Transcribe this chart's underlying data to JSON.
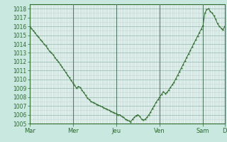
{
  "title": "",
  "bg_color": "#c8e8e0",
  "plot_bg_color": "#e0f0ec",
  "line_color": "#2d6a2d",
  "marker_color": "#2d6a2d",
  "grid_color_major": "#a0bfb8",
  "grid_color_minor": "#c4d8d4",
  "ylabel": "",
  "xlabel": "",
  "ylim": [
    1005,
    1018.5
  ],
  "yticks": [
    1005,
    1006,
    1007,
    1008,
    1009,
    1010,
    1011,
    1012,
    1013,
    1014,
    1015,
    1016,
    1017,
    1018
  ],
  "x_day_labels": [
    "Mar",
    "Mer",
    "Jeu",
    "Ven",
    "Sam",
    "D"
  ],
  "x_day_positions": [
    0,
    24,
    48,
    72,
    96,
    108
  ],
  "vline_positions": [
    24,
    48,
    72,
    96
  ],
  "num_points": 109,
  "pressure_values": [
    1016.0,
    1015.8,
    1015.5,
    1015.3,
    1015.0,
    1014.8,
    1014.5,
    1014.3,
    1014.0,
    1013.8,
    1013.5,
    1013.2,
    1013.0,
    1012.8,
    1012.5,
    1012.2,
    1012.0,
    1011.7,
    1011.4,
    1011.1,
    1010.8,
    1010.5,
    1010.2,
    1009.9,
    1009.6,
    1009.3,
    1009.0,
    1009.2,
    1009.1,
    1008.8,
    1008.5,
    1008.2,
    1007.9,
    1007.7,
    1007.5,
    1007.4,
    1007.3,
    1007.2,
    1007.1,
    1007.0,
    1006.9,
    1006.8,
    1006.7,
    1006.6,
    1006.5,
    1006.4,
    1006.3,
    1006.2,
    1006.1,
    1006.0,
    1006.0,
    1005.8,
    1005.7,
    1005.5,
    1005.4,
    1005.3,
    1005.2,
    1005.5,
    1005.7,
    1005.9,
    1006.0,
    1005.8,
    1005.5,
    1005.4,
    1005.5,
    1005.7,
    1006.0,
    1006.3,
    1006.7,
    1007.0,
    1007.4,
    1007.7,
    1008.0,
    1008.3,
    1008.6,
    1008.4,
    1008.5,
    1008.8,
    1009.1,
    1009.4,
    1009.7,
    1010.1,
    1010.5,
    1010.9,
    1011.3,
    1011.7,
    1012.1,
    1012.5,
    1012.9,
    1013.3,
    1013.7,
    1014.1,
    1014.5,
    1014.9,
    1015.3,
    1015.7,
    1016.1,
    1017.5,
    1017.9,
    1018.0,
    1017.7,
    1017.5,
    1017.2,
    1016.8,
    1016.3,
    1016.0,
    1015.8,
    1015.6,
    1016.0
  ]
}
